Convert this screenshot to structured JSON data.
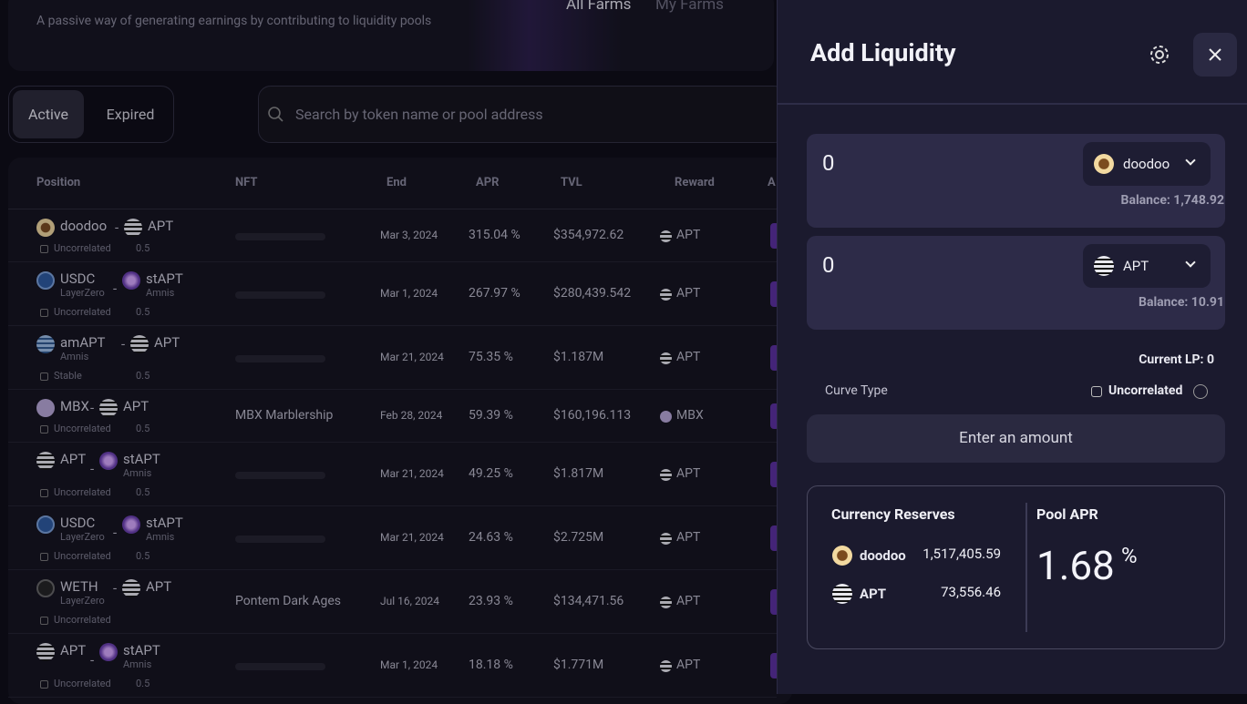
{
  "header": {
    "subtitle": "A passive way of generating earnings by contributing to liquidity pools",
    "tabs": [
      "All Farms",
      "My Farms"
    ]
  },
  "filters": {
    "status": [
      "Active",
      "Expired"
    ],
    "search_placeholder": "Search by token name or pool address"
  },
  "table": {
    "columns": [
      "Position",
      "NFT",
      "End",
      "APR",
      "TVL",
      "Reward",
      "A"
    ],
    "separator": "-",
    "rows": [
      {
        "token_a": {
          "name": "doodoo",
          "sub": null
        },
        "token_b": {
          "name": "APT",
          "sub": null
        },
        "curve": "Uncorrelated",
        "fee": "0.5",
        "nft": null,
        "end": "Mar 3, 2024",
        "apr": "315.04 %",
        "tvl": "$354,972.62",
        "reward": "APT"
      },
      {
        "token_a": {
          "name": "USDC",
          "sub": "LayerZero"
        },
        "token_b": {
          "name": "stAPT",
          "sub": "Amnis"
        },
        "curve": "Uncorrelated",
        "fee": "0.5",
        "nft": null,
        "end": "Mar 1, 2024",
        "apr": "267.97 %",
        "tvl": "$280,439.542",
        "reward": "APT"
      },
      {
        "token_a": {
          "name": "amAPT",
          "sub": "Amnis"
        },
        "token_b": {
          "name": "APT",
          "sub": null
        },
        "curve": "Stable",
        "fee": "0.5",
        "nft": null,
        "end": "Mar 21, 2024",
        "apr": "75.35 %",
        "tvl": "$1.187M",
        "reward": "APT"
      },
      {
        "token_a": {
          "name": "MBX",
          "sub": null
        },
        "token_b": {
          "name": "APT",
          "sub": null
        },
        "curve": "Uncorrelated",
        "fee": "0.5",
        "nft": "MBX Marblership",
        "end": "Feb 28, 2024",
        "apr": "59.39 %",
        "tvl": "$160,196.113",
        "reward": "MBX"
      },
      {
        "token_a": {
          "name": "APT",
          "sub": null
        },
        "token_b": {
          "name": "stAPT",
          "sub": "Amnis"
        },
        "curve": "Uncorrelated",
        "fee": "0.5",
        "nft": null,
        "end": "Mar 21, 2024",
        "apr": "49.25 %",
        "tvl": "$1.817M",
        "reward": "APT"
      },
      {
        "token_a": {
          "name": "USDC",
          "sub": "LayerZero"
        },
        "token_b": {
          "name": "stAPT",
          "sub": "Amnis"
        },
        "curve": "Uncorrelated",
        "fee": "0.5",
        "nft": null,
        "end": "Mar 21, 2024",
        "apr": "24.63 %",
        "tvl": "$2.725M",
        "reward": "APT"
      },
      {
        "token_a": {
          "name": "WETH",
          "sub": "LayerZero"
        },
        "token_b": {
          "name": "APT",
          "sub": null
        },
        "curve": "Uncorrelated",
        "fee": null,
        "nft": "Pontem Dark Ages",
        "end": "Jul 16, 2024",
        "apr": "23.93 %",
        "tvl": "$134,471.56",
        "reward": "APT"
      },
      {
        "token_a": {
          "name": "APT",
          "sub": null
        },
        "token_b": {
          "name": "stAPT",
          "sub": "Amnis"
        },
        "curve": "Uncorrelated",
        "fee": "0.5",
        "nft": null,
        "end": "Mar 1, 2024",
        "apr": "18.18 %",
        "tvl": "$1.771M",
        "reward": "APT"
      }
    ]
  },
  "panel": {
    "title": "Add Liquidity",
    "inputs": [
      {
        "amount": "0",
        "token": "doodoo",
        "balance": "Balance: 1,748.92"
      },
      {
        "amount": "0",
        "token": "APT",
        "balance": "Balance: 10.91"
      }
    ],
    "current_lp": "Current LP: 0",
    "curve_label": "Curve Type",
    "curve_value": "Uncorrelated",
    "button": "Enter an amount",
    "reserves_title": "Currency Reserves",
    "reserves": [
      {
        "token": "doodoo",
        "amount": "1,517,405.59"
      },
      {
        "token": "APT",
        "amount": "73,556.46"
      }
    ],
    "pool_apr_title": "Pool APR",
    "pool_apr": "1.68",
    "pool_apr_unit": "%"
  }
}
